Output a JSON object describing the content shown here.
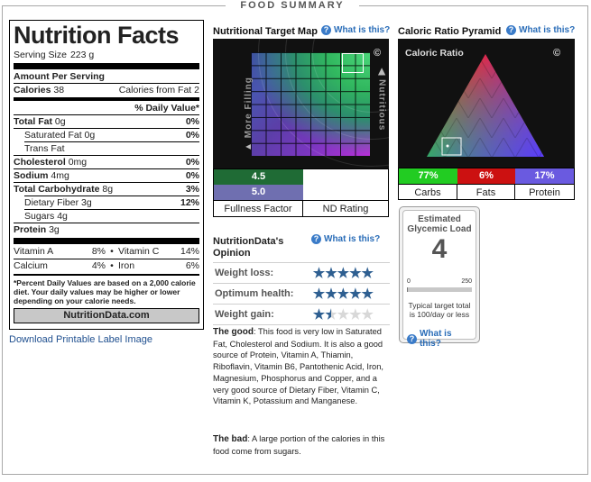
{
  "header": {
    "title": "FOOD SUMMARY"
  },
  "label": {
    "title": "Nutrition Facts",
    "serving_label": "Serving Size",
    "serving_value": "223 g",
    "amount_per": "Amount Per Serving",
    "calories_label": "Calories",
    "calories_value": "38",
    "calories_fat_label": "Calories from Fat",
    "calories_fat_value": "2",
    "dv_header": "% Daily Value*",
    "rows": [
      {
        "label": "Total Fat",
        "value": "0g",
        "dv": "0%"
      },
      {
        "label": "Saturated Fat",
        "value": "0g",
        "dv": "0%"
      },
      {
        "label": "Trans Fat",
        "value": "",
        "dv": ""
      },
      {
        "label": "Cholesterol",
        "value": "0mg",
        "dv": "0%"
      },
      {
        "label": "Sodium",
        "value": "4mg",
        "dv": "0%"
      },
      {
        "label": "Total Carbohydrate",
        "value": "8g",
        "dv": "3%"
      },
      {
        "label": "Dietary Fiber",
        "value": "3g",
        "dv": "12%"
      },
      {
        "label": "Sugars",
        "value": "4g",
        "dv": ""
      },
      {
        "label": "Protein",
        "value": "3g",
        "dv": ""
      }
    ],
    "vitamins": [
      {
        "a_label": "Vitamin A",
        "a_dv": "8%",
        "b_label": "Vitamin C",
        "b_dv": "14%"
      },
      {
        "a_label": "Calcium",
        "a_dv": "4%",
        "b_label": "Iron",
        "b_dv": "6%"
      }
    ],
    "bullet": "•",
    "footnote": "*Percent Daily Values are based on a 2,000 calorie diet. Your daily values may be higher or lower depending on your calorie needs.",
    "brand": "NutritionData.com"
  },
  "download_link": "Download Printable Label Image",
  "target_map": {
    "title": "Nutritional Target Map",
    "what": "What is this?",
    "left_label": "More Filling",
    "right_label": "Nutritious",
    "copyright": "©",
    "fullness_value": "4.5",
    "nd_value": "5.0",
    "fullness_label": "Fullness Factor",
    "nd_label": "ND Rating",
    "fullness_color": "#1f6b35",
    "nd_color": "#6f6fb0"
  },
  "opinion": {
    "title": "NutritionData's Opinion",
    "what": "What is this?",
    "rows": [
      {
        "label": "Weight loss:",
        "stars": 5
      },
      {
        "label": "Optimum health:",
        "stars": 5
      },
      {
        "label": "Weight gain:",
        "stars": 1.5
      }
    ],
    "good_label": "The good",
    "good_text": ": This food is very low in Saturated Fat, Cholesterol and Sodium. It is also a good source of Protein, Vitamin A, Thiamin, Riboflavin, Vitamin B6, Pantothenic Acid, Iron, Magnesium, Phosphorus and Copper, and a very good source of Dietary Fiber, Vitamin C, Vitamin K, Potassium and Manganese.",
    "bad_label": "The bad",
    "bad_text": ": A large portion of the calories in this food come from sugars."
  },
  "pyramid": {
    "title": "Caloric Ratio Pyramid",
    "what": "What is this?",
    "inner_title": "Caloric Ratio",
    "copyright": "©",
    "ratios": [
      {
        "value": "77%",
        "label": "Carbs",
        "color": "#22cc22"
      },
      {
        "value": "6%",
        "label": "Fats",
        "color": "#cc1111"
      },
      {
        "value": "17%",
        "label": "Protein",
        "color": "#6a5ae0"
      }
    ]
  },
  "glycemic": {
    "title": "Estimated Glycemic Load",
    "value": "4",
    "scale_min": "0",
    "scale_max": "250",
    "fill_fraction": 0.016,
    "note": "Typical target total is 100/day or less",
    "what": "What is this?"
  }
}
